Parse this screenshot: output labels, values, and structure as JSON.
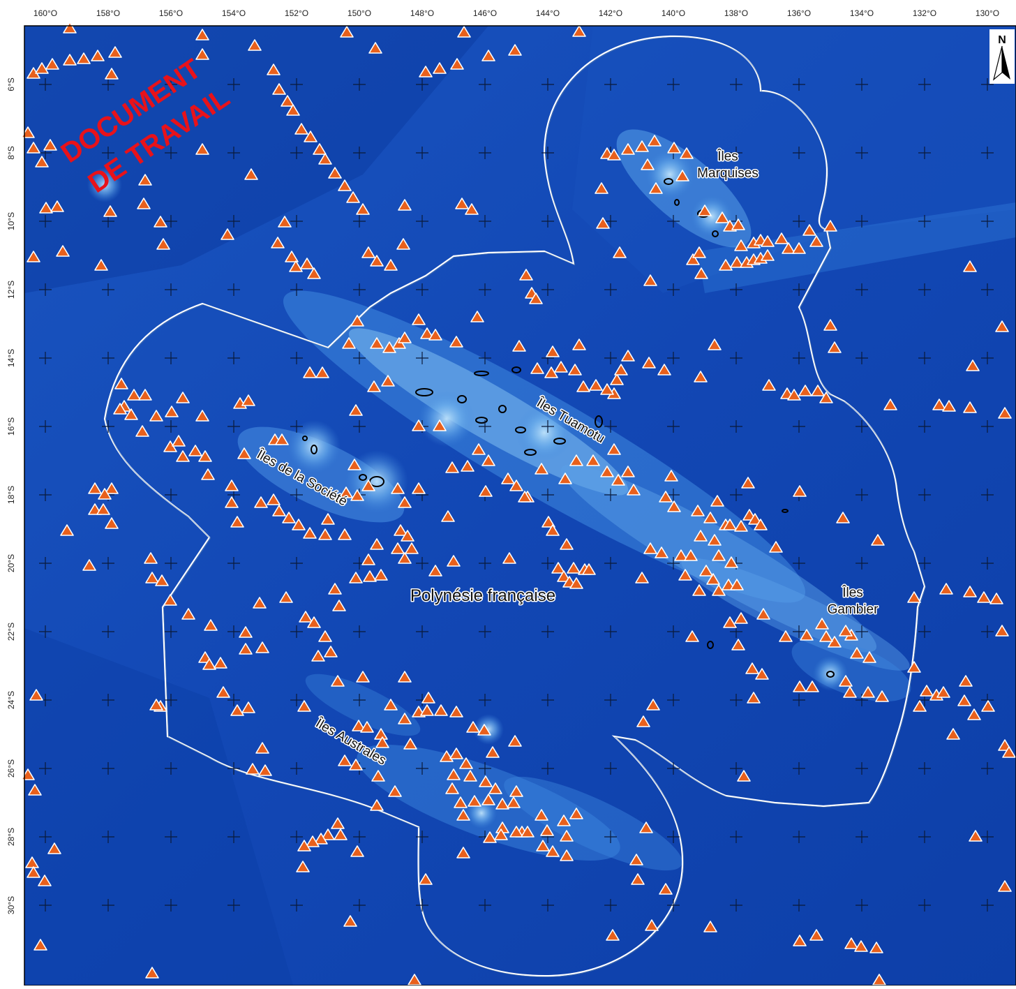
{
  "map": {
    "lon_ticks": [
      "160°O",
      "158°O",
      "156°O",
      "154°O",
      "152°O",
      "150°O",
      "148°O",
      "146°O",
      "144°O",
      "142°O",
      "140°O",
      "138°O",
      "136°O",
      "134°O",
      "132°O",
      "130°O"
    ],
    "lat_ticks": [
      "6°S",
      "8°S",
      "10°S",
      "12°S",
      "14°S",
      "16°S",
      "18°S",
      "20°S",
      "22°S",
      "24°S",
      "26°S",
      "28°S",
      "30°S"
    ],
    "region_label": "Polynésie française",
    "island_labels": {
      "marquises_line1": "Îles",
      "marquises_line2": "Marquises",
      "tuamotu": "Îles Tuamotu",
      "societe": "Îles de la Société",
      "australes": "Îles Australes",
      "gambier_line1": "Îles",
      "gambier_line2": "Gambier"
    },
    "watermark_line1": "DOCUMENT",
    "watermark_line2": "DE TRAVAIL",
    "north_arrow_label": "N",
    "colors": {
      "ocean_deep": "#0b3ea8",
      "ocean_mid": "#1d5fcc",
      "ocean_shallow": "#4e9ae6",
      "ocean_light": "#9fd0f5",
      "eez_outline": "#ffffff",
      "seamount_fill": "#e8601c",
      "seamount_edge": "#ffffff",
      "watermark": "#e8121a"
    },
    "marker_symbol": "seamount-triangle-icon"
  }
}
